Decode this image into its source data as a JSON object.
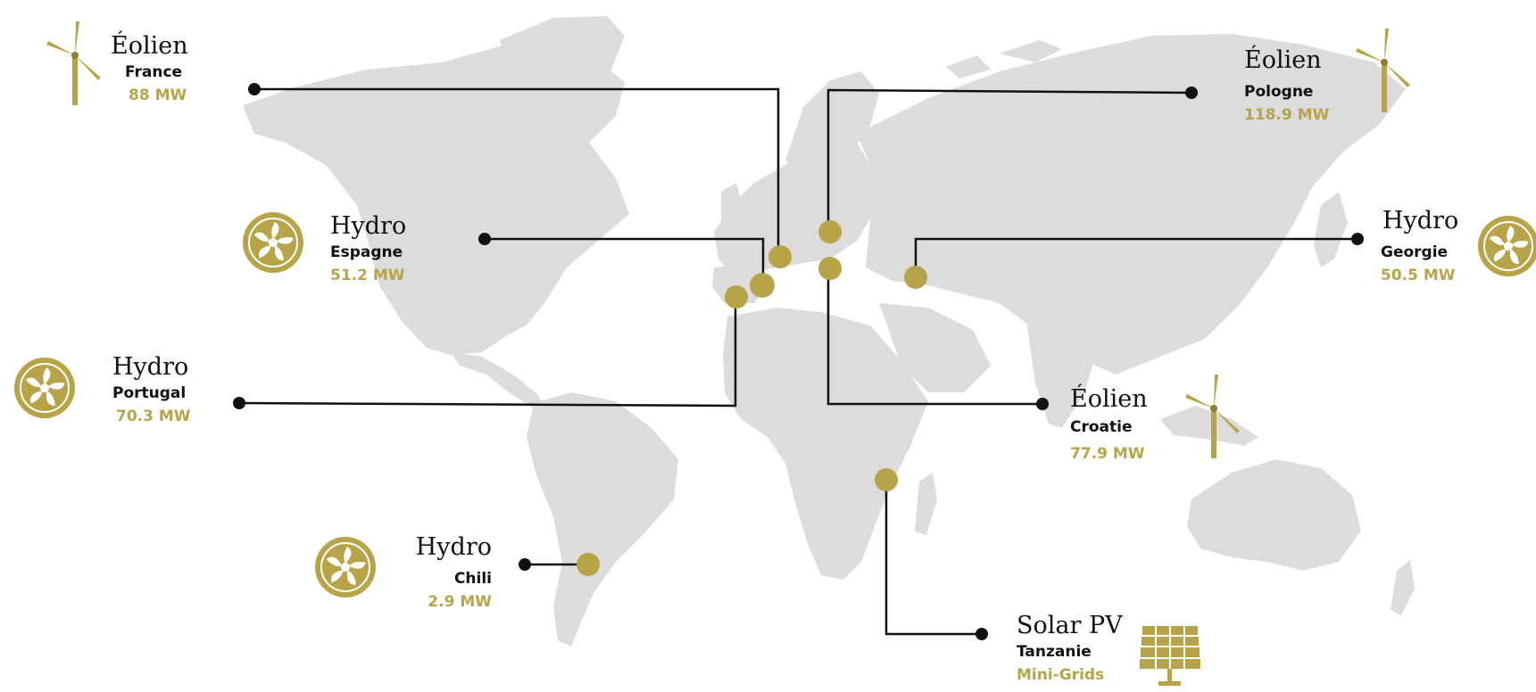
{
  "colors": {
    "land": "#dcdcdd",
    "accent": "#b8a448",
    "accent_dark": "#8e7d2e",
    "line": "#111111",
    "text": "#111111"
  },
  "projects": [
    {
      "id": "france",
      "technology": "Éolien",
      "country": "France",
      "capacity": "88 MW",
      "icon": "wind-turbine-icon"
    },
    {
      "id": "espagne",
      "technology": "Hydro",
      "country": "Espagne",
      "capacity": "51.2 MW",
      "icon": "hydro-turbine-icon"
    },
    {
      "id": "portugal",
      "technology": "Hydro",
      "country": "Portugal",
      "capacity": "70.3 MW",
      "icon": "hydro-turbine-icon"
    },
    {
      "id": "chili",
      "technology": "Hydro",
      "country": "Chili",
      "capacity": "2.9 MW",
      "icon": "hydro-turbine-icon"
    },
    {
      "id": "pologne",
      "technology": "Éolien",
      "country": "Pologne",
      "capacity": "118.9 MW",
      "icon": "wind-turbine-icon"
    },
    {
      "id": "georgie",
      "technology": "Hydro",
      "country": "Georgie",
      "capacity": "50.5 MW",
      "icon": "hydro-turbine-icon"
    },
    {
      "id": "croatie",
      "technology": "Éolien",
      "country": "Croatie",
      "capacity": "77.9 MW",
      "icon": "wind-turbine-icon"
    },
    {
      "id": "tanzanie",
      "technology": "Solar PV",
      "country": "Tanzanie",
      "capacity": "Mini-Grids",
      "icon": "solar-panel-icon"
    }
  ]
}
